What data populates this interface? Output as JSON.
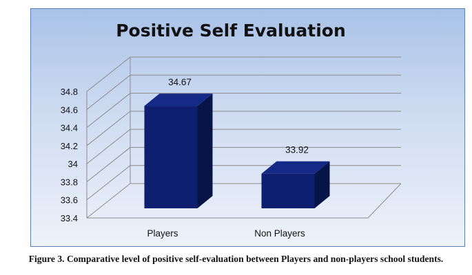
{
  "chart_data": {
    "type": "bar",
    "style": "3d-column",
    "title": "Positive Self Evaluation",
    "categories": [
      "Players",
      "Non Players"
    ],
    "values": [
      34.67,
      33.92
    ],
    "data_labels": [
      "34.67",
      "33.92"
    ],
    "ylim": [
      33.4,
      34.8
    ],
    "yticks": [
      "33.4",
      "33.6",
      "33.8",
      "34",
      "34.2",
      "34.4",
      "34.6",
      "34.8"
    ],
    "xlabel": "",
    "ylabel": "",
    "grid": true,
    "legend": "none",
    "colors": {
      "bar_front": "#0d1f6e",
      "bar_side": "#071448",
      "bar_top": "#142a86",
      "grid": "#8a8a8a",
      "background_top": "#a9c2e8",
      "background_bottom": "#eef2fa"
    }
  },
  "caption": "Figure 3. Comparative level of positive self-evaluation between Players and non-players school students."
}
